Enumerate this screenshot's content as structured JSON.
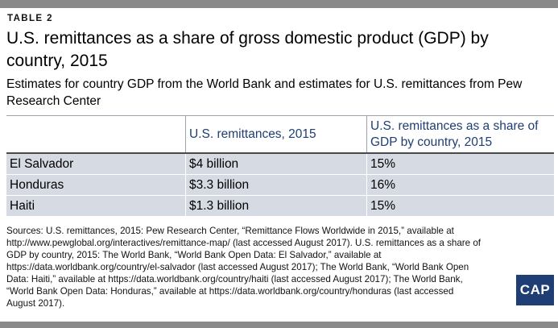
{
  "label": "TABLE 2",
  "title": "U.S. remittances as a share of gross domestic product (GDP) by country, 2015",
  "subtitle": "Estimates for country GDP from the World Bank and estimates for U.S. remittances from Pew Research Center",
  "table": {
    "headers": [
      "",
      "U.S. remittances, 2015",
      "U.S. remittances as a share of GDP by country, 2015"
    ],
    "rows": [
      [
        "El Salvador",
        "$4 billion",
        "15%"
      ],
      [
        "Honduras",
        "$3.3 billion",
        "16%"
      ],
      [
        "Haiti",
        "$1.3 billion",
        "15%"
      ]
    ]
  },
  "sources": "Sources: U.S. remittances, 2015: Pew Research Center, “Remittance Flows Worldwide in 2015,” available at http://www.pewglobal.org/interactives/remittance-map/ (last accessed August 2017). U.S. remittances as a share of GDP by country, 2015: The World Bank, “World Bank Open Data: El Salvador,” available at https://data.worldbank.org/country/el-salvador (last accessed August 2017); The World Bank, “World Bank Open Data: Haiti,” available at https://data.worldbank.org/country/haiti (last accessed August 2017); The World Bank, “World Bank Open Data: Honduras,” available at https://data.worldbank.org/country/honduras (last accessed August 2017).",
  "logo": {
    "text": "CAP"
  },
  "colors": {
    "header_text": "#1f3e73",
    "row_fill": "#d6dbe3",
    "frame_bar": "#8a8a8a",
    "logo_bg": "#1f3e73"
  }
}
